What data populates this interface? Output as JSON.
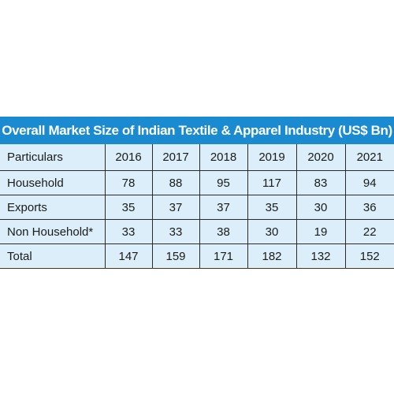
{
  "chart_data": {
    "type": "table",
    "title": "Overall Market Size of Indian Textile & Apparel Industry (US$ Bn)",
    "columns": [
      "Particulars",
      "2016",
      "2017",
      "2018",
      "2019",
      "2020",
      "2021"
    ],
    "rows": [
      {
        "label": "Household",
        "values": [
          "78",
          "88",
          "95",
          "117",
          "83",
          "94"
        ]
      },
      {
        "label": "Exports",
        "values": [
          "35",
          "37",
          "37",
          "35",
          "30",
          "36"
        ]
      },
      {
        "label": "Non Household*",
        "values": [
          "33",
          "33",
          "38",
          "30",
          "19",
          "22"
        ]
      },
      {
        "label": "Total",
        "values": [
          "147",
          "159",
          "171",
          "182",
          "132",
          "152"
        ]
      }
    ]
  },
  "colors": {
    "title_background": "#1a8bd0",
    "table_background": "#dbeef9",
    "title_text": "#ffffff"
  }
}
